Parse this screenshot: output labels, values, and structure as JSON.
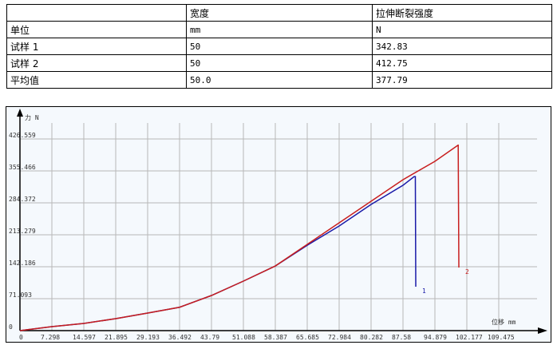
{
  "table": {
    "header": [
      "",
      "宽度",
      "拉伸断裂强度"
    ],
    "rows": [
      [
        "单位",
        "mm",
        "N"
      ],
      [
        "试样 1",
        "50",
        "342.83"
      ],
      [
        "试样 2",
        "50",
        "412.75"
      ],
      [
        "平均值",
        "50.0",
        "377.79"
      ]
    ]
  },
  "chart_data": {
    "type": "line",
    "xlabel": "位移 mm",
    "ylabel": "力 N",
    "xlim": [
      0,
      116.8
    ],
    "ylim": [
      0,
      450
    ],
    "grid": true,
    "x_ticks": [
      "0",
      "7.298",
      "14.597",
      "21.895",
      "29.193",
      "36.492",
      "43.79",
      "51.088",
      "58.387",
      "65.685",
      "72.984",
      "80.282",
      "87.58",
      "94.879",
      "102.177",
      "109.475"
    ],
    "y_ticks": [
      "0",
      "71.093",
      "142.186",
      "213.279",
      "284.372",
      "355.466",
      "426.559"
    ],
    "series": [
      {
        "name": "1",
        "color": "#1a1aa8",
        "points": [
          [
            0,
            0
          ],
          [
            7.298,
            8.9
          ],
          [
            14.597,
            16
          ],
          [
            21.895,
            26.7
          ],
          [
            29.193,
            39.1
          ],
          [
            36.492,
            52
          ],
          [
            43.79,
            78.2
          ],
          [
            51.088,
            110.2
          ],
          [
            58.387,
            143.9
          ],
          [
            65.685,
            190
          ],
          [
            72.984,
            232.8
          ],
          [
            80.282,
            280.8
          ],
          [
            87.58,
            323.5
          ],
          [
            90.13,
            342.83
          ],
          [
            90.4,
            342.83
          ],
          [
            90.5,
            97.8
          ]
        ]
      },
      {
        "name": "2",
        "color": "#c81e1e",
        "points": [
          [
            0,
            0
          ],
          [
            7.298,
            8.9
          ],
          [
            14.597,
            16
          ],
          [
            21.895,
            26.7
          ],
          [
            29.193,
            39.1
          ],
          [
            36.492,
            52
          ],
          [
            43.79,
            78.2
          ],
          [
            51.088,
            110.2
          ],
          [
            58.387,
            143.9
          ],
          [
            65.685,
            191.9
          ],
          [
            72.984,
            239.9
          ],
          [
            80.282,
            287.9
          ],
          [
            87.58,
            335.9
          ],
          [
            94.879,
            376.8
          ],
          [
            100.17,
            412.75
          ],
          [
            100.2,
            412.75
          ],
          [
            100.35,
            140.4
          ]
        ]
      }
    ]
  }
}
